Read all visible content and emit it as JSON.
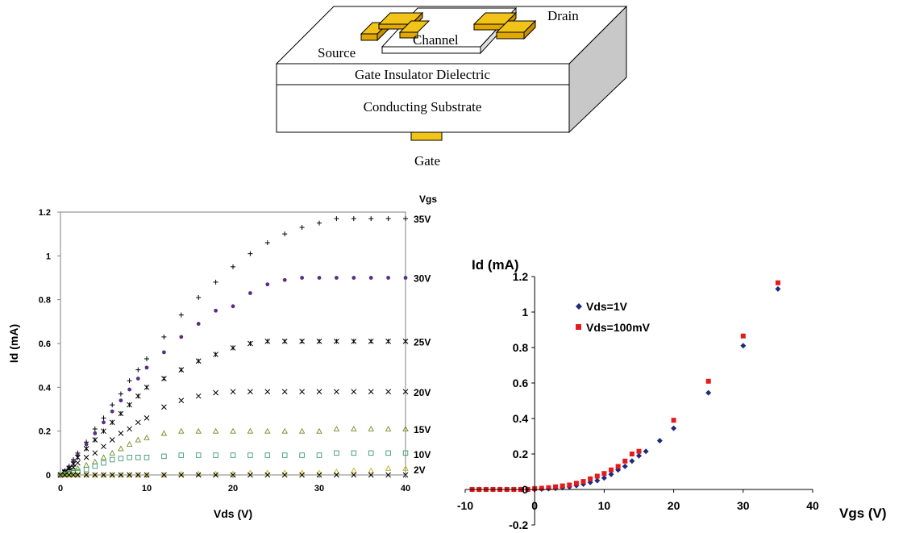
{
  "diagram": {
    "labels": {
      "drain": "Drain",
      "source": "Source",
      "channel": "Channel",
      "insulator": "Gate Insulator Dielectric",
      "substrate": "Conducting Substrate",
      "gate": "Gate"
    },
    "colors": {
      "contact": "#f2c318",
      "side": "#c8c8c8",
      "face": "#ffffff"
    }
  },
  "chart_data": [
    {
      "type": "scatter",
      "title": "",
      "xlabel": "Vds (V)",
      "ylabel": "Id (mA)",
      "legend_title": "Vgs",
      "xlim": [
        0,
        40
      ],
      "ylim": [
        0,
        1.2
      ],
      "xticks": [
        "0",
        "10",
        "20",
        "30",
        "40"
      ],
      "yticks": [
        "0",
        "0.2",
        "0.4",
        "0.6",
        "0.8",
        "1",
        "1.2"
      ],
      "x": [
        0,
        0.5,
        1,
        1.5,
        2,
        3,
        4,
        5,
        6,
        7,
        8,
        9,
        10,
        12,
        14,
        16,
        18,
        20,
        22,
        24,
        26,
        28,
        30,
        32,
        34,
        36,
        38,
        40
      ],
      "series": [
        {
          "name": "35V",
          "marker": "+",
          "color": "#000000",
          "values": [
            0,
            0.02,
            0.04,
            0.07,
            0.1,
            0.15,
            0.21,
            0.26,
            0.32,
            0.37,
            0.43,
            0.48,
            0.53,
            0.63,
            0.73,
            0.81,
            0.88,
            0.95,
            1.01,
            1.06,
            1.1,
            1.13,
            1.15,
            1.17,
            1.17,
            1.17,
            1.17,
            1.17
          ]
        },
        {
          "name": "30V",
          "marker": "dot",
          "color": "#5a2d82",
          "values": [
            0,
            0.018,
            0.036,
            0.06,
            0.09,
            0.14,
            0.19,
            0.24,
            0.29,
            0.34,
            0.39,
            0.44,
            0.49,
            0.56,
            0.63,
            0.69,
            0.75,
            0.77,
            0.83,
            0.87,
            0.89,
            0.9,
            0.9,
            0.9,
            0.9,
            0.9,
            0.9,
            0.9
          ]
        },
        {
          "name": "25V",
          "marker": "asterisk",
          "color": "#000000",
          "values": [
            0,
            0.015,
            0.03,
            0.05,
            0.08,
            0.12,
            0.16,
            0.2,
            0.24,
            0.28,
            0.32,
            0.36,
            0.4,
            0.44,
            0.48,
            0.52,
            0.55,
            0.58,
            0.6,
            0.61,
            0.61,
            0.61,
            0.61,
            0.61,
            0.61,
            0.61,
            0.61,
            0.61
          ]
        },
        {
          "name": "20V",
          "marker": "x",
          "color": "#000000",
          "values": [
            0,
            0.01,
            0.02,
            0.035,
            0.055,
            0.08,
            0.1,
            0.13,
            0.16,
            0.19,
            0.21,
            0.24,
            0.26,
            0.31,
            0.34,
            0.36,
            0.375,
            0.38,
            0.38,
            0.38,
            0.38,
            0.38,
            0.38,
            0.38,
            0.38,
            0.38,
            0.38,
            0.38
          ]
        },
        {
          "name": "15V",
          "marker": "triangle",
          "color": "#6b8e23",
          "values": [
            0,
            0.005,
            0.01,
            0.02,
            0.03,
            0.045,
            0.06,
            0.08,
            0.1,
            0.12,
            0.14,
            0.16,
            0.17,
            0.19,
            0.2,
            0.2,
            0.2,
            0.2,
            0.2,
            0.2,
            0.2,
            0.2,
            0.2,
            0.21,
            0.21,
            0.21,
            0.21,
            0.21
          ]
        },
        {
          "name": "10V",
          "marker": "square",
          "color": "#3d9970",
          "values": [
            0,
            0.003,
            0.006,
            0.01,
            0.015,
            0.025,
            0.04,
            0.055,
            0.07,
            0.075,
            0.08,
            0.08,
            0.08,
            0.085,
            0.09,
            0.09,
            0.09,
            0.09,
            0.09,
            0.09,
            0.09,
            0.09,
            0.09,
            0.1,
            0.1,
            0.1,
            0.1,
            0.1
          ]
        },
        {
          "name": "2V",
          "marker": "triangle",
          "color": "#c0b020",
          "values": [
            0,
            0,
            0,
            0,
            0,
            0,
            0,
            0,
            0,
            0,
            0,
            0,
            0,
            0,
            0.005,
            0.005,
            0.005,
            0.005,
            0.01,
            0.01,
            0.01,
            0.01,
            0.01,
            0.015,
            0.02,
            0.02,
            0.03,
            0.03
          ]
        },
        {
          "name": "",
          "marker": "x",
          "color": "#000000",
          "values": [
            0,
            0,
            0,
            0,
            0,
            0,
            0,
            0,
            0,
            0,
            0,
            0,
            0,
            0,
            0,
            0,
            0,
            0,
            0,
            0,
            0,
            0,
            0,
            0,
            0,
            0,
            0,
            0
          ]
        }
      ]
    },
    {
      "type": "scatter",
      "title": "",
      "xlabel": "Vgs (V)",
      "ylabel": "Id (mA)",
      "xlim": [
        -10,
        40
      ],
      "ylim": [
        -0.2,
        1.2
      ],
      "xticks": [
        "-10",
        "0",
        "10",
        "20",
        "30",
        "40"
      ],
      "yticks": [
        "-0.2",
        "0",
        "0.2",
        "0.4",
        "0.6",
        "0.8",
        "1",
        "1.2"
      ],
      "legend_position": "top-left",
      "series": [
        {
          "name": "Vds=1V",
          "marker": "diamond",
          "color": "#1f2a7a",
          "x": [
            -9,
            -8,
            -7,
            -6,
            -5,
            -4,
            -3,
            -2,
            -1,
            0,
            1,
            2,
            3,
            4,
            5,
            6,
            7,
            8,
            9,
            10,
            11,
            12,
            13,
            14,
            15,
            16,
            18,
            20,
            25,
            30,
            35
          ],
          "values": [
            0,
            0,
            0,
            0,
            0,
            0,
            0,
            0,
            0,
            0,
            0.002,
            0.004,
            0.006,
            0.01,
            0.015,
            0.022,
            0.03,
            0.04,
            0.05,
            0.065,
            0.085,
            0.11,
            0.13,
            0.16,
            0.19,
            0.215,
            0.275,
            0.345,
            0.545,
            0.81,
            1.13
          ]
        },
        {
          "name": "Vds=100mV",
          "marker": "square",
          "color": "#e41a1c",
          "x": [
            -9,
            -8,
            -7,
            -6,
            -5,
            -4,
            -3,
            -2,
            -1,
            0,
            1,
            2,
            3,
            4,
            5,
            6,
            7,
            8,
            9,
            10,
            11,
            12,
            13,
            14,
            15,
            20,
            25,
            30,
            35
          ],
          "values": [
            0,
            0,
            0,
            0,
            0,
            0,
            0,
            0,
            0,
            0.005,
            0.007,
            0.01,
            0.015,
            0.02,
            0.025,
            0.035,
            0.045,
            0.06,
            0.075,
            0.09,
            0.11,
            0.13,
            0.16,
            0.2,
            0.215,
            0.39,
            0.61,
            0.865,
            1.165
          ]
        }
      ]
    }
  ]
}
